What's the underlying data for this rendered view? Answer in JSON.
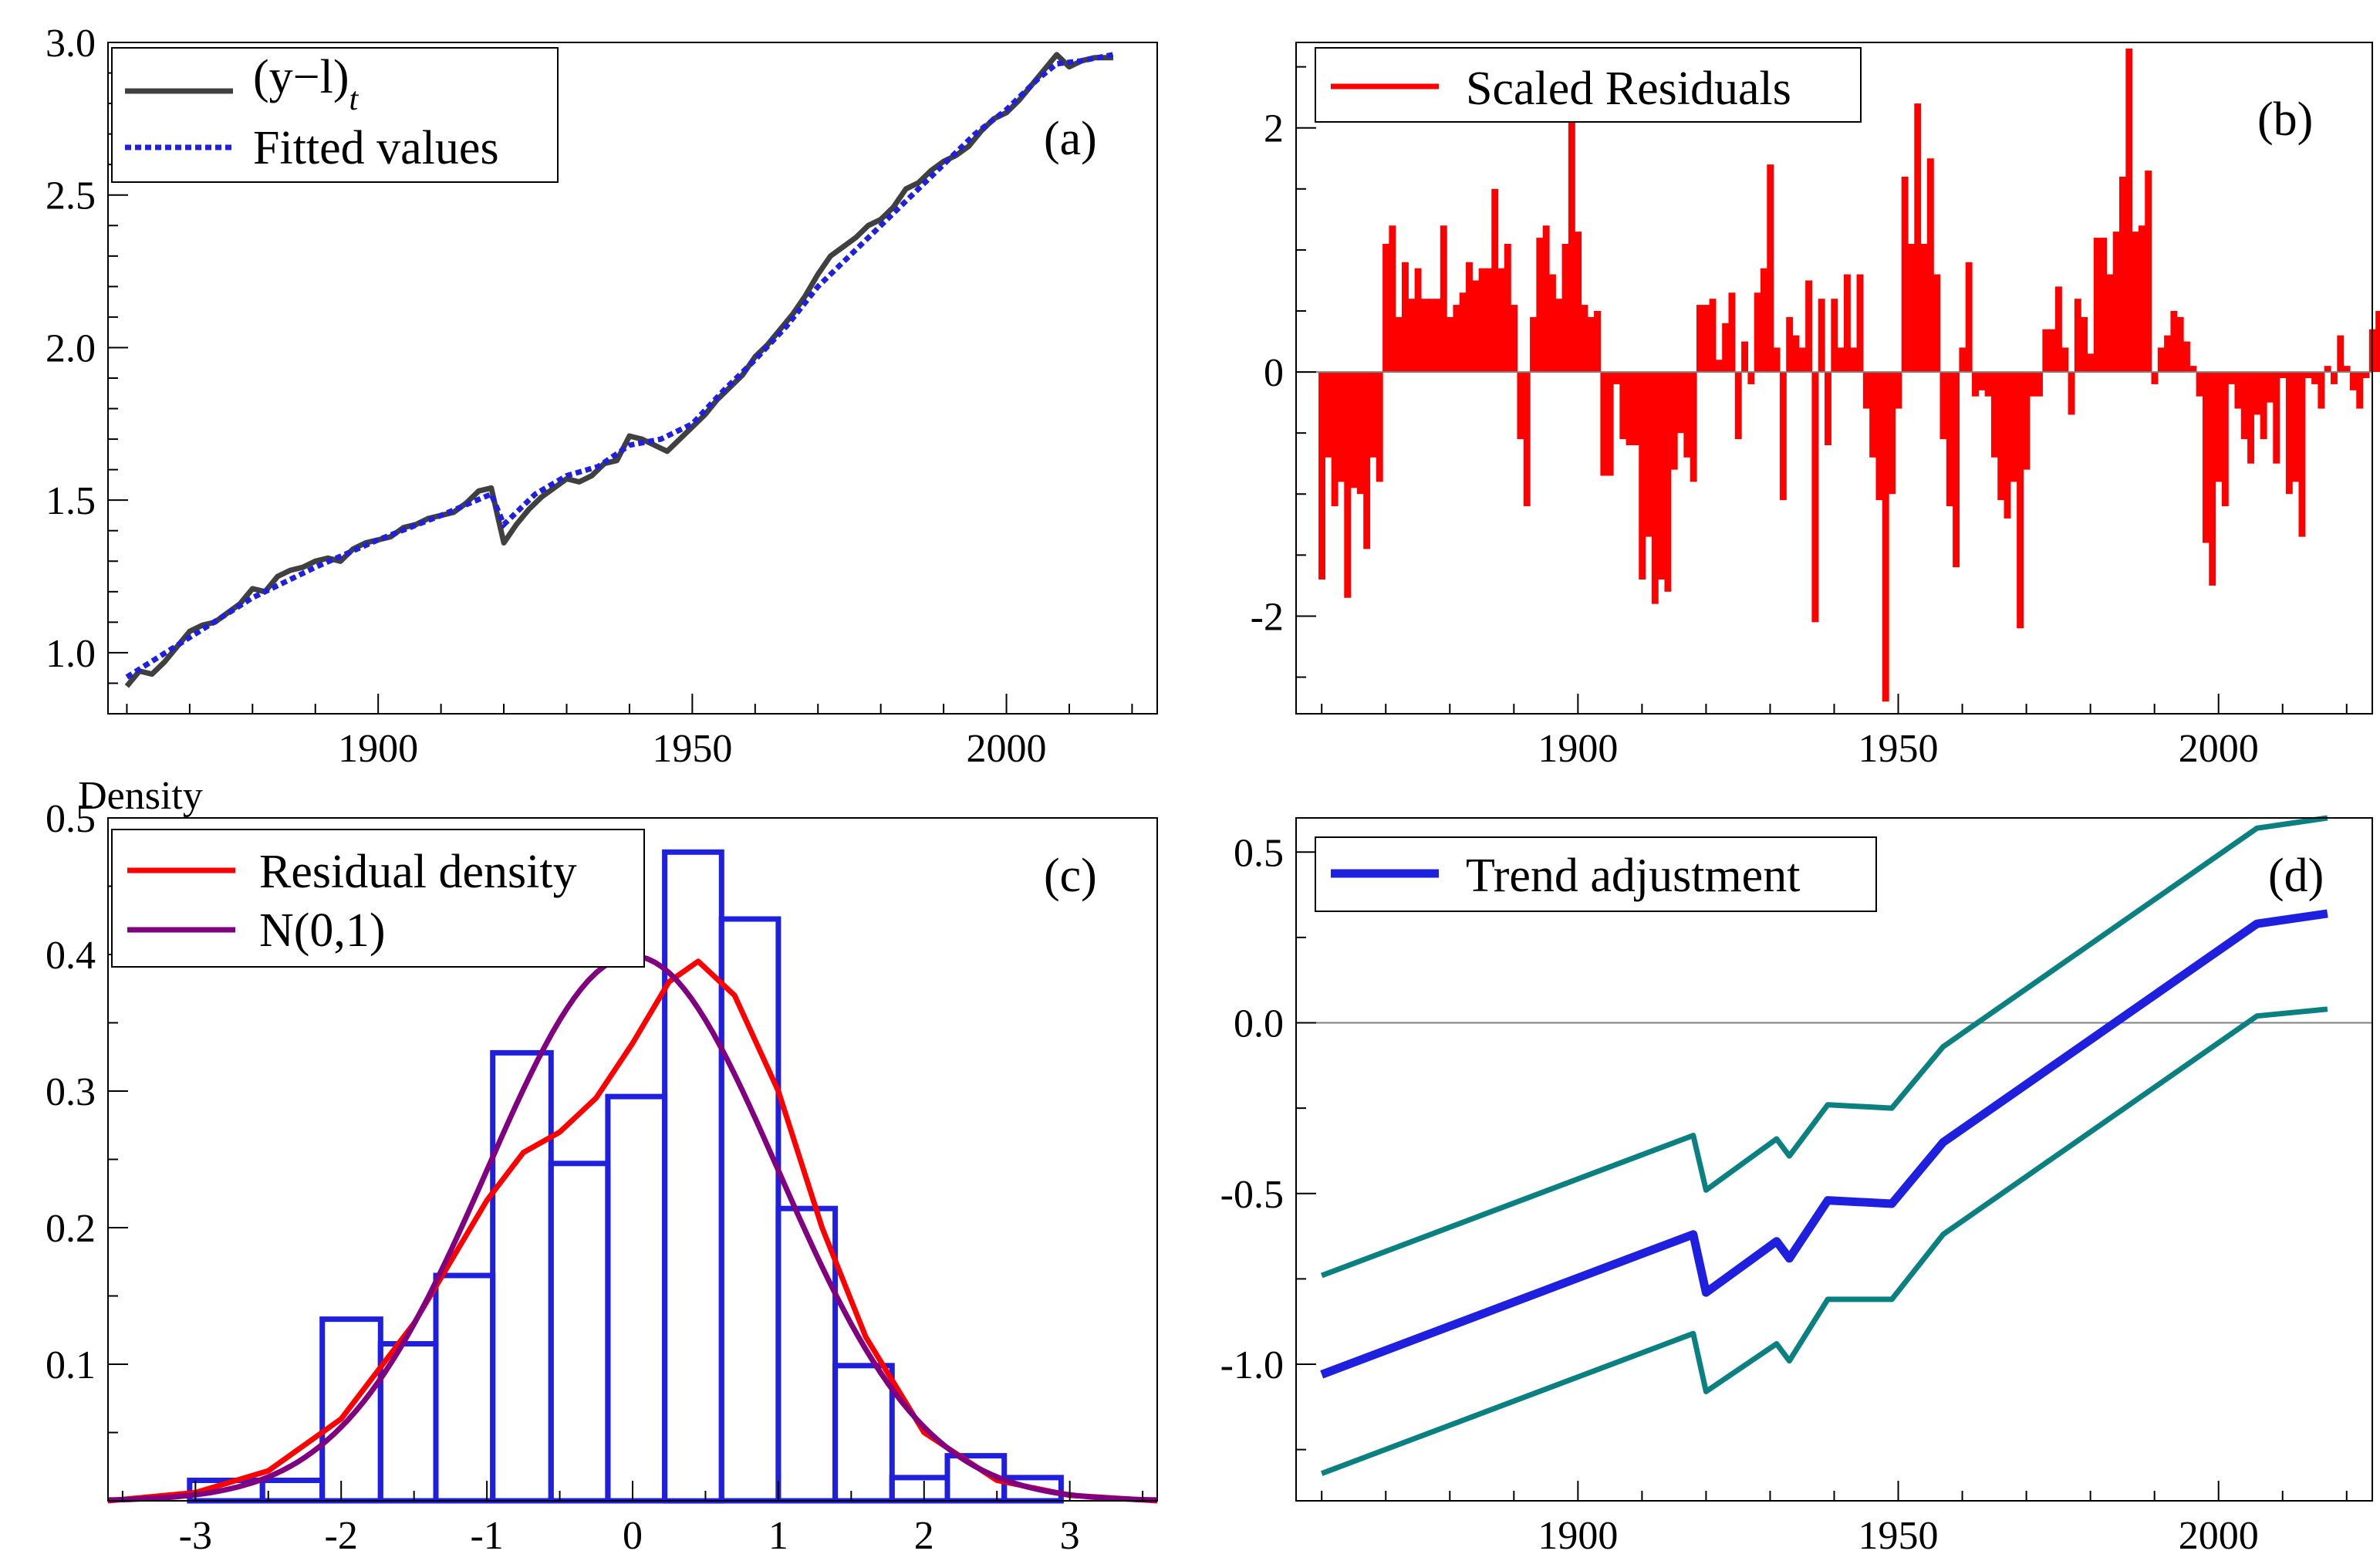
{
  "chart_data": [
    {
      "id": "a",
      "type": "line",
      "panel_label": "(a)",
      "xlim": [
        1857,
        2024
      ],
      "ylim": [
        0.8,
        3.0
      ],
      "x_ticks": [
        1900,
        1950,
        2000
      ],
      "y_ticks": [
        "1.0",
        "1.5",
        "2.0",
        "2.5",
        "3.0"
      ],
      "legend": {
        "position": "top-left",
        "entries": [
          "(y−l)t",
          "Fitted values"
        ]
      },
      "series": [
        {
          "name": "(y−l)t",
          "color": "#404040",
          "style": "solid",
          "points": [
            [
              1860,
              0.89
            ],
            [
              1862,
              0.94
            ],
            [
              1864,
              0.93
            ],
            [
              1866,
              0.97
            ],
            [
              1868,
              1.02
            ],
            [
              1870,
              1.07
            ],
            [
              1872,
              1.09
            ],
            [
              1874,
              1.1
            ],
            [
              1876,
              1.13
            ],
            [
              1878,
              1.16
            ],
            [
              1880,
              1.21
            ],
            [
              1882,
              1.2
            ],
            [
              1884,
              1.25
            ],
            [
              1886,
              1.27
            ],
            [
              1888,
              1.28
            ],
            [
              1890,
              1.3
            ],
            [
              1892,
              1.31
            ],
            [
              1894,
              1.3
            ],
            [
              1896,
              1.34
            ],
            [
              1898,
              1.36
            ],
            [
              1900,
              1.37
            ],
            [
              1902,
              1.38
            ],
            [
              1904,
              1.41
            ],
            [
              1906,
              1.42
            ],
            [
              1908,
              1.44
            ],
            [
              1910,
              1.45
            ],
            [
              1912,
              1.46
            ],
            [
              1914,
              1.49
            ],
            [
              1916,
              1.53
            ],
            [
              1918,
              1.54
            ],
            [
              1919,
              1.45
            ],
            [
              1920,
              1.36
            ],
            [
              1922,
              1.42
            ],
            [
              1924,
              1.47
            ],
            [
              1926,
              1.51
            ],
            [
              1928,
              1.54
            ],
            [
              1930,
              1.57
            ],
            [
              1932,
              1.56
            ],
            [
              1934,
              1.58
            ],
            [
              1936,
              1.62
            ],
            [
              1938,
              1.63
            ],
            [
              1940,
              1.71
            ],
            [
              1942,
              1.7
            ],
            [
              1944,
              1.68
            ],
            [
              1946,
              1.66
            ],
            [
              1948,
              1.7
            ],
            [
              1950,
              1.74
            ],
            [
              1952,
              1.78
            ],
            [
              1954,
              1.83
            ],
            [
              1956,
              1.87
            ],
            [
              1958,
              1.91
            ],
            [
              1960,
              1.97
            ],
            [
              1962,
              2.01
            ],
            [
              1964,
              2.06
            ],
            [
              1966,
              2.11
            ],
            [
              1968,
              2.17
            ],
            [
              1970,
              2.24
            ],
            [
              1972,
              2.3
            ],
            [
              1974,
              2.33
            ],
            [
              1976,
              2.36
            ],
            [
              1978,
              2.4
            ],
            [
              1980,
              2.42
            ],
            [
              1982,
              2.46
            ],
            [
              1984,
              2.52
            ],
            [
              1986,
              2.54
            ],
            [
              1988,
              2.58
            ],
            [
              1990,
              2.61
            ],
            [
              1992,
              2.63
            ],
            [
              1994,
              2.66
            ],
            [
              1996,
              2.71
            ],
            [
              1998,
              2.75
            ],
            [
              2000,
              2.77
            ],
            [
              2002,
              2.81
            ],
            [
              2004,
              2.86
            ],
            [
              2006,
              2.91
            ],
            [
              2008,
              2.96
            ],
            [
              2010,
              2.92
            ],
            [
              2012,
              2.94
            ],
            [
              2014,
              2.95
            ],
            [
              2017,
              2.95
            ]
          ]
        },
        {
          "name": "Fitted values",
          "color": "#1f1fe0",
          "style": "dotted",
          "points": [
            [
              1860,
              0.92
            ],
            [
              1870,
              1.05
            ],
            [
              1880,
              1.18
            ],
            [
              1890,
              1.28
            ],
            [
              1900,
              1.37
            ],
            [
              1910,
              1.45
            ],
            [
              1918,
              1.52
            ],
            [
              1920,
              1.42
            ],
            [
              1925,
              1.52
            ],
            [
              1930,
              1.58
            ],
            [
              1935,
              1.61
            ],
            [
              1940,
              1.68
            ],
            [
              1945,
              1.7
            ],
            [
              1950,
              1.75
            ],
            [
              1955,
              1.86
            ],
            [
              1960,
              1.96
            ],
            [
              1965,
              2.07
            ],
            [
              1970,
              2.2
            ],
            [
              1975,
              2.3
            ],
            [
              1980,
              2.4
            ],
            [
              1985,
              2.5
            ],
            [
              1990,
              2.6
            ],
            [
              1995,
              2.7
            ],
            [
              2000,
              2.78
            ],
            [
              2005,
              2.88
            ],
            [
              2008,
              2.93
            ],
            [
              2012,
              2.94
            ],
            [
              2017,
              2.96
            ]
          ]
        }
      ]
    },
    {
      "id": "b",
      "type": "bar",
      "panel_label": "(b)",
      "xlim": [
        1856,
        2024
      ],
      "ylim": [
        -2.8,
        2.7
      ],
      "x_ticks": [
        1900,
        1950,
        2000
      ],
      "y_ticks": [
        "-2",
        "0",
        "2"
      ],
      "legend": {
        "position": "top-left",
        "entries": [
          "Scaled Residuals"
        ]
      },
      "series": [
        {
          "name": "Scaled Residuals",
          "color": "#ff0000",
          "start_year": 1860,
          "values": [
            -1.7,
            -0.7,
            -1.1,
            -0.9,
            -1.85,
            -0.95,
            -1.0,
            -1.45,
            -0.7,
            -0.9,
            1.05,
            1.2,
            0.45,
            0.9,
            0.6,
            0.85,
            0.6,
            0.6,
            0.6,
            1.2,
            0.45,
            0.55,
            0.65,
            0.9,
            0.75,
            0.85,
            0.85,
            1.5,
            0.85,
            1.05,
            0.55,
            -0.55,
            -1.1,
            0.45,
            1.1,
            1.2,
            0.8,
            0.6,
            1.05,
            2.1,
            1.15,
            0.55,
            0.45,
            0.5,
            -0.85,
            -0.85,
            -0.1,
            -0.55,
            -0.6,
            -0.6,
            -1.7,
            -1.35,
            -1.9,
            -1.7,
            -1.8,
            -0.8,
            -0.5,
            -0.7,
            -0.9,
            0.55,
            0.55,
            0.6,
            0.1,
            0.4,
            0.65,
            -0.55,
            0.25,
            -0.1,
            0.65,
            0.85,
            1.7,
            0.2,
            -1.05,
            0.45,
            0.3,
            0.2,
            0.75,
            -2.05,
            0.6,
            -0.6,
            0.6,
            0.2,
            0.8,
            0.2,
            0.8,
            -0.3,
            -0.7,
            -1.05,
            -2.7,
            -1.0,
            -0.3,
            1.6,
            1.05,
            2.2,
            1.05,
            1.75,
            0.8,
            -0.55,
            -1.1,
            -1.6,
            0.2,
            0.9,
            -0.2,
            -0.15,
            -0.2,
            -0.7,
            -1.05,
            -1.2,
            -0.9,
            -2.1,
            -0.8,
            -0.2,
            -0.2,
            0.35,
            0.35,
            0.7,
            0.2,
            -0.35,
            0.6,
            0.45,
            0.15,
            1.1,
            1.1,
            0.8,
            1.15,
            1.6,
            2.65,
            1.15,
            1.2,
            1.65,
            -0.1,
            0.2,
            0.3,
            0.5,
            0.45,
            0.25,
            0.05,
            -0.2,
            -1.4,
            -1.75,
            -0.9,
            -1.1,
            -0.1,
            -0.3,
            -0.55,
            -0.75,
            -0.35,
            -0.55,
            -0.25,
            -0.75,
            -0.05,
            -1.0,
            -0.9,
            -1.35,
            -0.05,
            -0.1,
            -0.3,
            0.05,
            -0.1,
            0.3,
            0.05,
            -0.15,
            -0.3,
            -0.05,
            0.35,
            0.5,
            0.25,
            0.55,
            0.55,
            0.6,
            1.55,
            0.75,
            -0.9,
            -0.55,
            -0.15,
            -0.35,
            -0.45,
            -0.15,
            0.25,
            0.05,
            0.15,
            0.1,
            0.3
          ]
        }
      ]
    },
    {
      "id": "c",
      "type": "bar",
      "panel_label": "(c)",
      "title": "Density",
      "xlim": [
        -3.6,
        3.6
      ],
      "ylim": [
        0,
        0.5
      ],
      "x_ticks": [
        "-3",
        "-2",
        "-1",
        "0",
        "1",
        "2",
        "3"
      ],
      "y_ticks": [
        "0.1",
        "0.2",
        "0.3",
        "0.4",
        "0.5"
      ],
      "legend": {
        "position": "top-left",
        "entries": [
          "Residual density",
          "N(0,1)"
        ]
      },
      "histogram": {
        "color": "#1f1fe0",
        "bin_edges": [
          -3.04,
          -2.54,
          -2.13,
          -1.73,
          -1.35,
          -0.96,
          -0.56,
          -0.17,
          0.22,
          0.61,
          1.0,
          1.39,
          1.78,
          2.16,
          2.55,
          2.94
        ],
        "values": [
          0.015,
          0.015,
          0.133,
          0.115,
          0.165,
          0.328,
          0.247,
          0.296,
          0.475,
          0.426,
          0.214,
          0.099,
          0.017,
          0.033,
          0.017
        ]
      },
      "series": [
        {
          "name": "Residual density",
          "color": "#ff0000",
          "points": [
            [
              -3.6,
              0.0
            ],
            [
              -3.0,
              0.006
            ],
            [
              -2.5,
              0.022
            ],
            [
              -2.0,
              0.06
            ],
            [
              -1.5,
              0.13
            ],
            [
              -1.0,
              0.22
            ],
            [
              -0.75,
              0.255
            ],
            [
              -0.5,
              0.27
            ],
            [
              -0.25,
              0.295
            ],
            [
              0.0,
              0.335
            ],
            [
              0.25,
              0.38
            ],
            [
              0.45,
              0.395
            ],
            [
              0.7,
              0.37
            ],
            [
              1.0,
              0.3
            ],
            [
              1.3,
              0.2
            ],
            [
              1.6,
              0.12
            ],
            [
              2.0,
              0.05
            ],
            [
              2.5,
              0.015
            ],
            [
              3.0,
              0.004
            ],
            [
              3.6,
              0.0
            ]
          ]
        },
        {
          "name": "N(0,1)",
          "color": "#800080",
          "mean": 0,
          "sd": 1,
          "x_range": [
            -3.6,
            3.6
          ]
        }
      ]
    },
    {
      "id": "d",
      "type": "line",
      "panel_label": "(d)",
      "xlim": [
        1856,
        2024
      ],
      "ylim": [
        -1.4,
        0.6
      ],
      "x_ticks": [
        1900,
        1950,
        2000
      ],
      "y_ticks": [
        "-1.0",
        "-0.5",
        "0.0",
        "0.5"
      ],
      "legend": {
        "position": "top-left",
        "entries": [
          "Trend adjustment"
        ]
      },
      "series": [
        {
          "name": "Trend adjustment",
          "color": "#1f1fe0",
          "points": [
            [
              1860,
              -1.03
            ],
            [
              1918,
              -0.62
            ],
            [
              1920,
              -0.79
            ],
            [
              1931,
              -0.64
            ],
            [
              1933,
              -0.69
            ],
            [
              1939,
              -0.52
            ],
            [
              1949,
              -0.53
            ],
            [
              1957,
              -0.35
            ],
            [
              2006,
              0.29
            ],
            [
              2017,
              0.32
            ]
          ]
        },
        {
          "name": "upper band",
          "color": "#0b8080",
          "points": [
            [
              1860,
              -0.74
            ],
            [
              1918,
              -0.33
            ],
            [
              1920,
              -0.49
            ],
            [
              1931,
              -0.34
            ],
            [
              1933,
              -0.39
            ],
            [
              1939,
              -0.24
            ],
            [
              1949,
              -0.25
            ],
            [
              1957,
              -0.07
            ],
            [
              2006,
              0.57
            ],
            [
              2017,
              0.6
            ]
          ]
        },
        {
          "name": "lower band",
          "color": "#0b8080",
          "points": [
            [
              1860,
              -1.32
            ],
            [
              1918,
              -0.91
            ],
            [
              1920,
              -1.08
            ],
            [
              1931,
              -0.94
            ],
            [
              1933,
              -0.99
            ],
            [
              1939,
              -0.81
            ],
            [
              1949,
              -0.81
            ],
            [
              1957,
              -0.62
            ],
            [
              2006,
              0.02
            ],
            [
              2017,
              0.04
            ]
          ]
        }
      ]
    }
  ]
}
